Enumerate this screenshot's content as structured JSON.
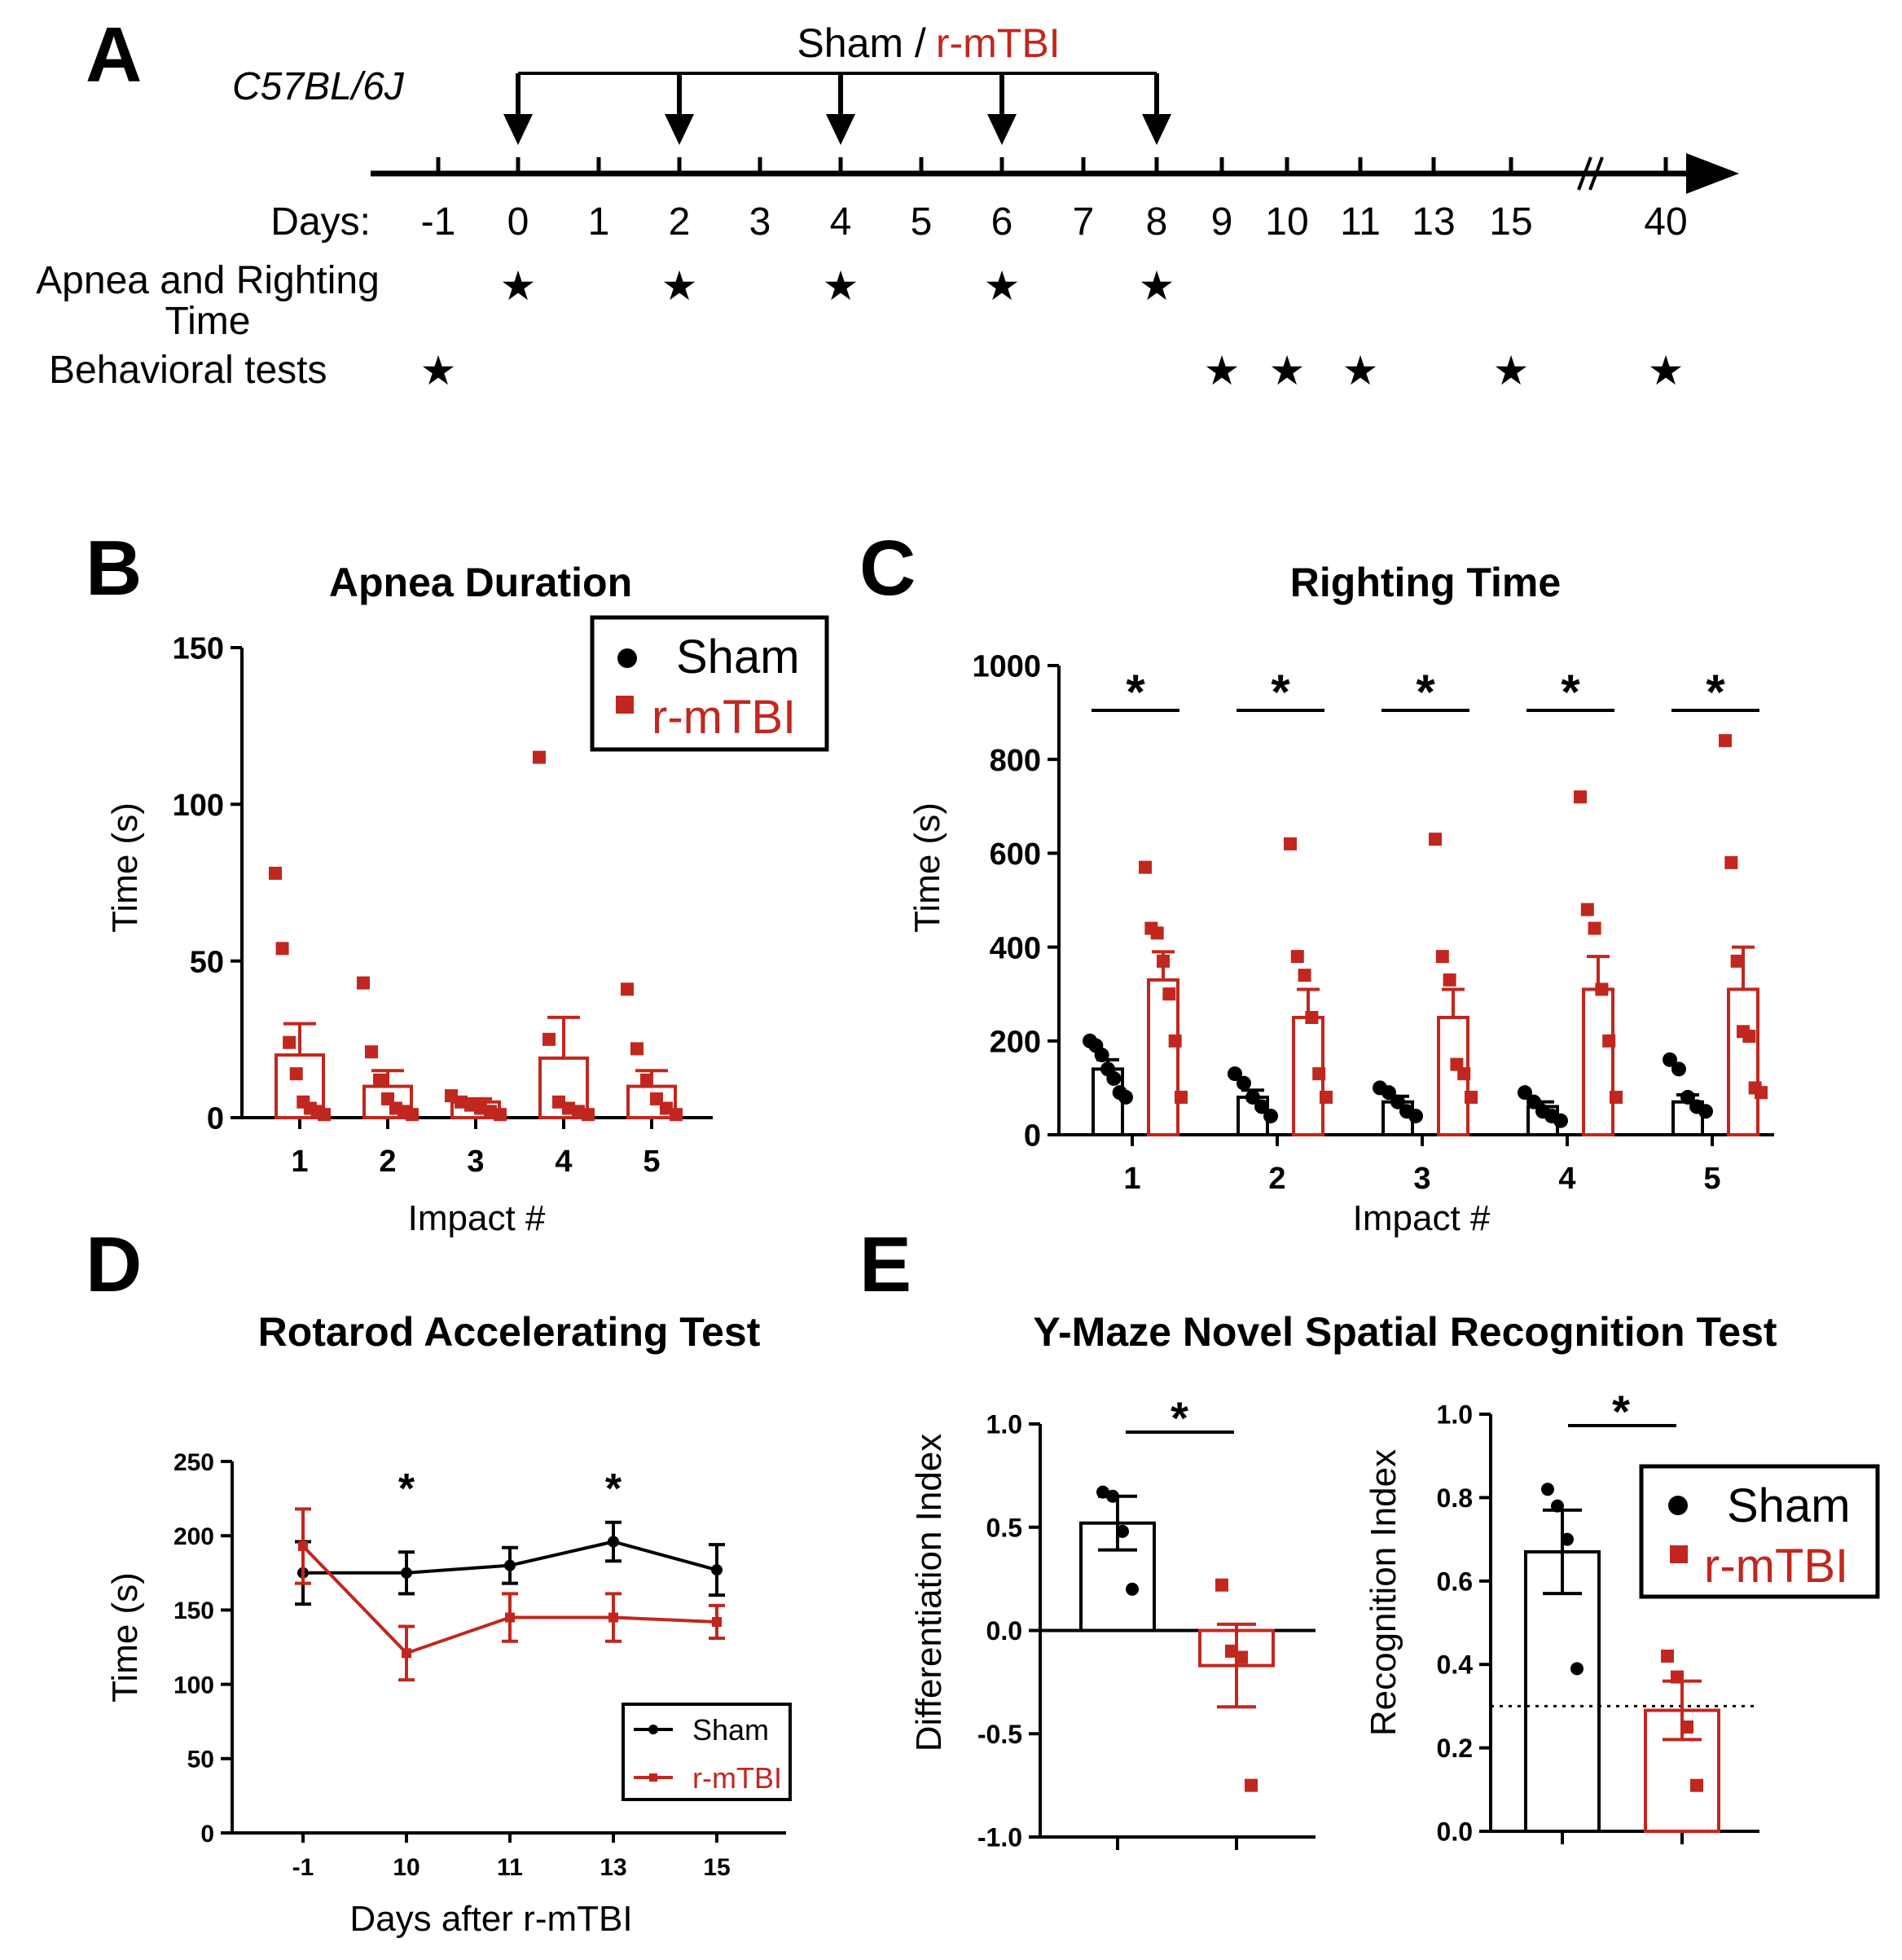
{
  "colors": {
    "sham": "#000000",
    "tbi": "#c1271e"
  },
  "panel_letters": [
    "A",
    "B",
    "C",
    "D",
    "E"
  ],
  "timeline": {
    "strain": "C57BL/6J",
    "top_label_prefix": "Sham /",
    "top_label_tbi": "r-mTBI",
    "days_label": "Days:",
    "days": [
      "-1",
      "0",
      "1",
      "2",
      "3",
      "4",
      "5",
      "6",
      "7",
      "8",
      "9",
      "10",
      "11",
      "13",
      "15",
      "40"
    ],
    "injury_days": [
      "0",
      "2",
      "4",
      "6",
      "8"
    ],
    "break_mark": "//",
    "rows": [
      {
        "label_lines": [
          "Apnea and Righting",
          "Time"
        ],
        "star_days": [
          "0",
          "2",
          "4",
          "6",
          "8"
        ]
      },
      {
        "label_lines": [
          "Behavioral tests"
        ],
        "star_days": [
          "-1",
          "9",
          "10",
          "11",
          "15",
          "40"
        ]
      }
    ],
    "star_glyph": "★"
  },
  "chart_data": [
    {
      "panel": "B",
      "type": "bar",
      "title": "Apnea Duration",
      "xlabel": "Impact #",
      "ylabel": "Time (s)",
      "ylim": [
        0,
        150
      ],
      "yticks": [
        "0",
        "50",
        "100",
        "150"
      ],
      "categories": [
        "1",
        "2",
        "3",
        "4",
        "5"
      ],
      "legend": [
        "Sham",
        "r-mTBI"
      ],
      "series": [
        {
          "name": "r-mTBI",
          "means": [
            20,
            10,
            5,
            19,
            10
          ],
          "sem": [
            10,
            5,
            1,
            13,
            5
          ],
          "points": [
            [
              78,
              54,
              24,
              14,
              5,
              3,
              2,
              1
            ],
            [
              43,
              21,
              12,
              6,
              3,
              2,
              1
            ],
            [
              7,
              5,
              4,
              3,
              2,
              1
            ],
            [
              115,
              25,
              5,
              3,
              2,
              1
            ],
            [
              41,
              22,
              12,
              6,
              3,
              1
            ]
          ]
        }
      ]
    },
    {
      "panel": "C",
      "type": "bar",
      "title": "Righting Time",
      "xlabel": "Impact #",
      "ylabel": "Time (s)",
      "ylim": [
        0,
        1000
      ],
      "yticks": [
        "0",
        "200",
        "400",
        "600",
        "800",
        "1000"
      ],
      "categories": [
        "1",
        "2",
        "3",
        "4",
        "5"
      ],
      "significance_marker": "*",
      "series": [
        {
          "name": "Sham",
          "means": [
            140,
            80,
            70,
            60,
            70
          ],
          "sem": [
            20,
            15,
            12,
            10,
            15
          ],
          "points": [
            [
              200,
              190,
              170,
              140,
              120,
              90,
              80
            ],
            [
              130,
              110,
              80,
              60,
              40
            ],
            [
              100,
              90,
              70,
              50,
              40
            ],
            [
              90,
              70,
              50,
              40,
              30
            ],
            [
              160,
              140,
              80,
              60,
              50
            ]
          ]
        },
        {
          "name": "r-mTBI",
          "means": [
            330,
            250,
            250,
            310,
            310
          ],
          "sem": [
            60,
            60,
            60,
            70,
            90
          ],
          "points": [
            [
              570,
              440,
              430,
              370,
              300,
              200,
              80
            ],
            [
              620,
              380,
              340,
              250,
              130,
              80
            ],
            [
              630,
              380,
              330,
              150,
              130,
              80
            ],
            [
              720,
              480,
              440,
              310,
              200,
              80
            ],
            [
              840,
              580,
              370,
              220,
              210,
              100,
              90
            ]
          ]
        }
      ]
    },
    {
      "panel": "D",
      "type": "line",
      "title": "Rotarod Accelerating Test",
      "xlabel": "Days after r-mTBI",
      "ylabel": "Time (s)",
      "ylim": [
        0,
        250
      ],
      "yticks": [
        "0",
        "50",
        "100",
        "150",
        "200",
        "250"
      ],
      "categories": [
        "-1",
        "10",
        "11",
        "13",
        "15"
      ],
      "significance": [
        "10",
        "13"
      ],
      "significance_marker": "*",
      "legend": [
        "Sham",
        "r-mTBI"
      ],
      "series": [
        {
          "name": "Sham",
          "values": [
            175,
            175,
            180,
            196,
            177
          ],
          "sem": [
            21,
            14,
            12,
            13,
            17
          ]
        },
        {
          "name": "r-mTBI",
          "values": [
            193,
            121,
            145,
            145,
            142
          ],
          "sem": [
            25,
            18,
            16,
            16,
            11
          ]
        }
      ]
    },
    {
      "panel": "E1",
      "type": "bar",
      "title": "Y-Maze Novel Spatial Recognition Test",
      "ylabel": "Differentiation Index",
      "ylim": [
        -1.0,
        1.0
      ],
      "yticks": [
        "-1.0",
        "-0.5",
        "0.0",
        "0.5",
        "1.0"
      ],
      "categories": [
        "Sham",
        "r-mTBI"
      ],
      "significance_marker": "*",
      "series": [
        {
          "name": "Sham",
          "means": [
            0.52
          ],
          "sem": [
            0.13
          ],
          "points": [
            [
              0.67,
              0.65,
              0.48,
              0.2
            ]
          ]
        },
        {
          "name": "r-mTBI",
          "means": [
            -0.17
          ],
          "sem": [
            0.2
          ],
          "points": [
            [
              0.22,
              -0.1,
              -0.13,
              -0.75
            ]
          ]
        }
      ]
    },
    {
      "panel": "E2",
      "type": "bar",
      "ylabel": "Recognition Index",
      "ylim": [
        0.0,
        1.0
      ],
      "yticks": [
        "0.0",
        "0.2",
        "0.4",
        "0.6",
        "0.8",
        "1.0"
      ],
      "categories": [
        "Sham",
        "r-mTBI"
      ],
      "chance_line": 0.3,
      "significance_marker": "*",
      "legend": [
        "Sham",
        "r-mTBI"
      ],
      "series": [
        {
          "name": "Sham",
          "means": [
            0.67
          ],
          "sem": [
            0.1
          ],
          "points": [
            [
              0.82,
              0.78,
              0.7,
              0.39
            ]
          ]
        },
        {
          "name": "r-mTBI",
          "means": [
            0.29
          ],
          "sem": [
            0.07
          ],
          "points": [
            [
              0.42,
              0.37,
              0.25,
              0.11
            ]
          ]
        }
      ]
    }
  ]
}
